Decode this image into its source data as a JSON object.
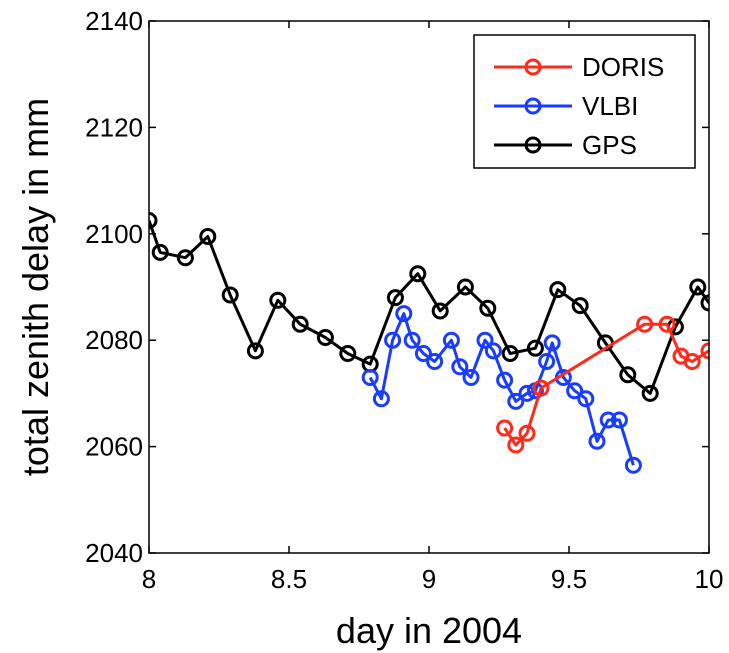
{
  "chart_data": {
    "type": "line",
    "title": "",
    "xlabel": "day in 2004",
    "ylabel": "total zenith delay in mm",
    "xlim": [
      8,
      10
    ],
    "ylim": [
      2040,
      2140
    ],
    "xticks": [
      8,
      8.5,
      9,
      9.5,
      10
    ],
    "xtick_labels": [
      "8",
      "8.5",
      "9",
      "9.5",
      "10"
    ],
    "yticks": [
      2040,
      2060,
      2080,
      2100,
      2120,
      2140
    ],
    "ytick_labels": [
      "2040",
      "2060",
      "2080",
      "2100",
      "2120",
      "2140"
    ],
    "grid": false,
    "legend_position": "top-right",
    "series": [
      {
        "name": "DORIS",
        "color": "#ff2a1a",
        "x": [
          9.27,
          9.31,
          9.35,
          9.4,
          9.77,
          9.85,
          9.9,
          9.94,
          10.0
        ],
        "y": [
          2063.5,
          2060.3,
          2062.5,
          2071,
          2083,
          2083,
          2077,
          2076,
          2078
        ]
      },
      {
        "name": "VLBI",
        "color": "#1a3cff",
        "x": [
          8.79,
          8.83,
          8.87,
          8.91,
          8.94,
          8.98,
          9.02,
          9.08,
          9.11,
          9.15,
          9.2,
          9.23,
          9.27,
          9.31,
          9.35,
          9.38,
          9.42,
          9.44,
          9.48,
          9.52,
          9.56,
          9.6,
          9.64,
          9.68,
          9.73
        ],
        "y": [
          2073,
          2069,
          2080,
          2085,
          2080,
          2077.5,
          2076,
          2080,
          2075,
          2073,
          2080,
          2078,
          2072.5,
          2068.5,
          2070,
          2070.5,
          2076,
          2079.5,
          2073,
          2070.5,
          2069,
          2061,
          2065,
          2065,
          2056.5
        ]
      },
      {
        "name": "GPS",
        "color": "#000000",
        "x": [
          8.0,
          8.04,
          8.13,
          8.21,
          8.29,
          8.38,
          8.46,
          8.54,
          8.63,
          8.71,
          8.79,
          8.88,
          8.96,
          9.04,
          9.13,
          9.21,
          9.29,
          9.38,
          9.46,
          9.54,
          9.63,
          9.71,
          9.79,
          9.88,
          9.96,
          10.0
        ],
        "y": [
          2102.5,
          2096.5,
          2095.5,
          2099.5,
          2088.5,
          2078,
          2087.5,
          2083,
          2080.5,
          2077.5,
          2075.5,
          2088,
          2092.5,
          2085.5,
          2090,
          2086,
          2077.5,
          2078.5,
          2089.5,
          2086.5,
          2079.5,
          2073.5,
          2070,
          2082.5,
          2090,
          2087
        ]
      }
    ]
  }
}
